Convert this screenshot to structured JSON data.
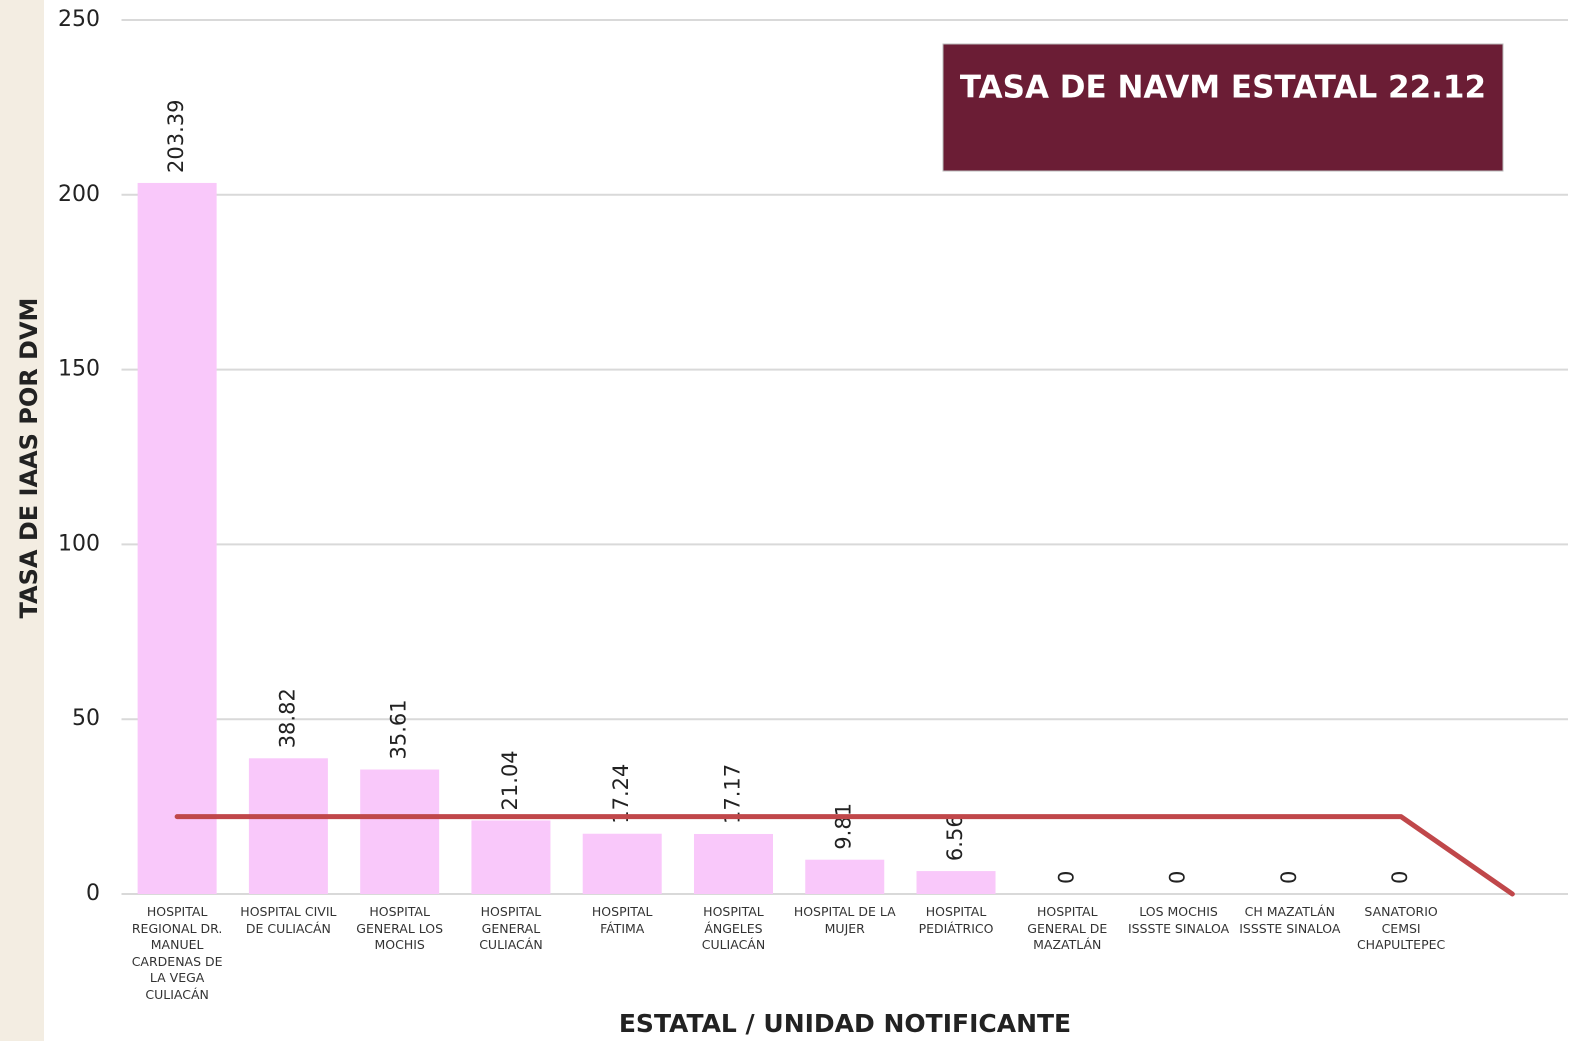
{
  "chart_data": {
    "type": "bar",
    "annotation": "TASA DE NAVM ESTATAL 22.12",
    "y_label": "TASA DE IAAS POR DVM",
    "x_label": "ESTATAL / UNIDAD NOTIFICANTE",
    "categories": [
      "HOSPITAL REGIONAL DR. MANUEL CARDENAS DE LA VEGA CULIACÁN",
      "HOSPITAL CIVIL DE CULIACÁN",
      "HOSPITAL GENERAL LOS MOCHIS",
      "HOSPITAL GENERAL CULIACÁN",
      "HOSPITAL FÁTIMA",
      "HOSPITAL ÁNGELES CULIACÁN",
      "HOSPITAL DE LA MUJER",
      "HOSPITAL PEDIÁTRICO",
      "HOSPITAL GENERAL DE MAZATLÁN",
      "LOS MOCHIS ISSSTE SINALOA",
      "CH MAZATLÁN ISSSTE SINALOA",
      "SANATORIO CEMSI CHAPULTEPEC",
      null
    ],
    "series": [
      {
        "type": "bar",
        "color": "#f9c8fa",
        "values": [
          203.39,
          38.82,
          35.61,
          21.04,
          17.24,
          17.17,
          9.81,
          6.56,
          0,
          0,
          0,
          0,
          null
        ]
      },
      {
        "type": "line",
        "color": "#c0474a",
        "values": [
          22.12,
          22.12,
          22.12,
          22.12,
          22.12,
          22.12,
          22.12,
          22.12,
          22.12,
          22.12,
          22.12,
          22.12,
          0
        ]
      }
    ],
    "ylim": [
      0,
      250
    ],
    "yticks": [
      0,
      50,
      100,
      150,
      200,
      250
    ],
    "grid": true
  }
}
